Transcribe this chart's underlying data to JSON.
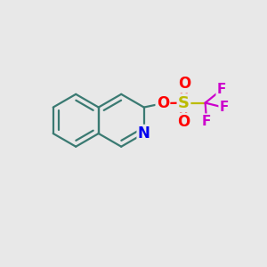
{
  "background_color": "#e8e8e8",
  "bond_color": "#3a7a72",
  "N_color": "#0000ee",
  "O_color": "#ff0000",
  "S_color": "#bbbb00",
  "F_color": "#cc00cc",
  "bond_width": 1.6,
  "dbo": 0.1,
  "font_size_atom": 11,
  "figsize": [
    3.0,
    3.0
  ],
  "dpi": 100,
  "xlim": [
    0,
    10
  ],
  "ylim": [
    0,
    10
  ]
}
